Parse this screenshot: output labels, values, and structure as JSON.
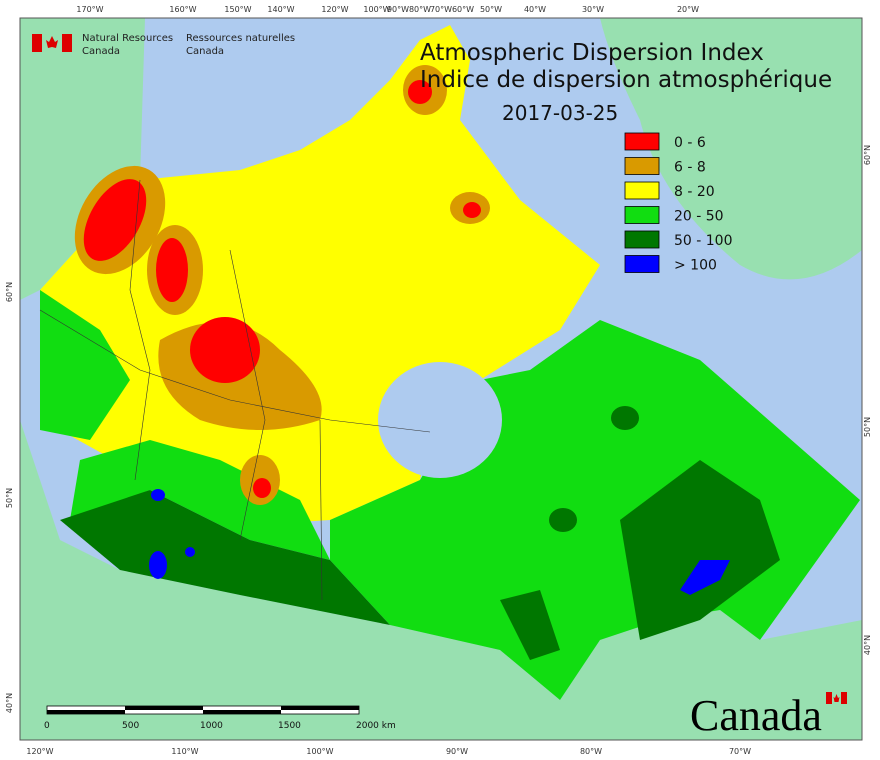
{
  "header": {
    "agency_en": [
      "Natural Resources",
      "Canada"
    ],
    "agency_fr": [
      "Ressources naturelles",
      "Canada"
    ]
  },
  "title": [
    "Atmospheric Dispersion Index",
    "Indice de dispersion atmosphérique"
  ],
  "date": "2017-03-25",
  "legend": [
    {
      "label": "0 - 6",
      "color": "#ff0000"
    },
    {
      "label": "6 - 8",
      "color": "#d99a00"
    },
    {
      "label": "8 - 20",
      "color": "#ffff00"
    },
    {
      "label": "20 - 50",
      "color": "#11dd11"
    },
    {
      "label": "50 - 100",
      "color": "#007700"
    },
    {
      "label": "> 100",
      "color": "#0000ff"
    }
  ],
  "graticule": {
    "top": [
      "170°W",
      "160°W",
      "150°W",
      "140°W",
      "120°W",
      "100°W",
      "90°W",
      "80°W",
      "70°W",
      "60°W",
      "50°W",
      "40°W",
      "30°W",
      "20°W"
    ],
    "bottom": [
      "120°W",
      "110°W",
      "100°W",
      "90°W",
      "80°W",
      "70°W"
    ],
    "left": [
      "60°N",
      "50°N",
      "40°N"
    ],
    "right": [
      "60°N",
      "50°N",
      "40°N"
    ]
  },
  "scale_bar": [
    "0",
    "500",
    "1000",
    "1500",
    "2000 km"
  ],
  "wordmark": "Canada"
}
